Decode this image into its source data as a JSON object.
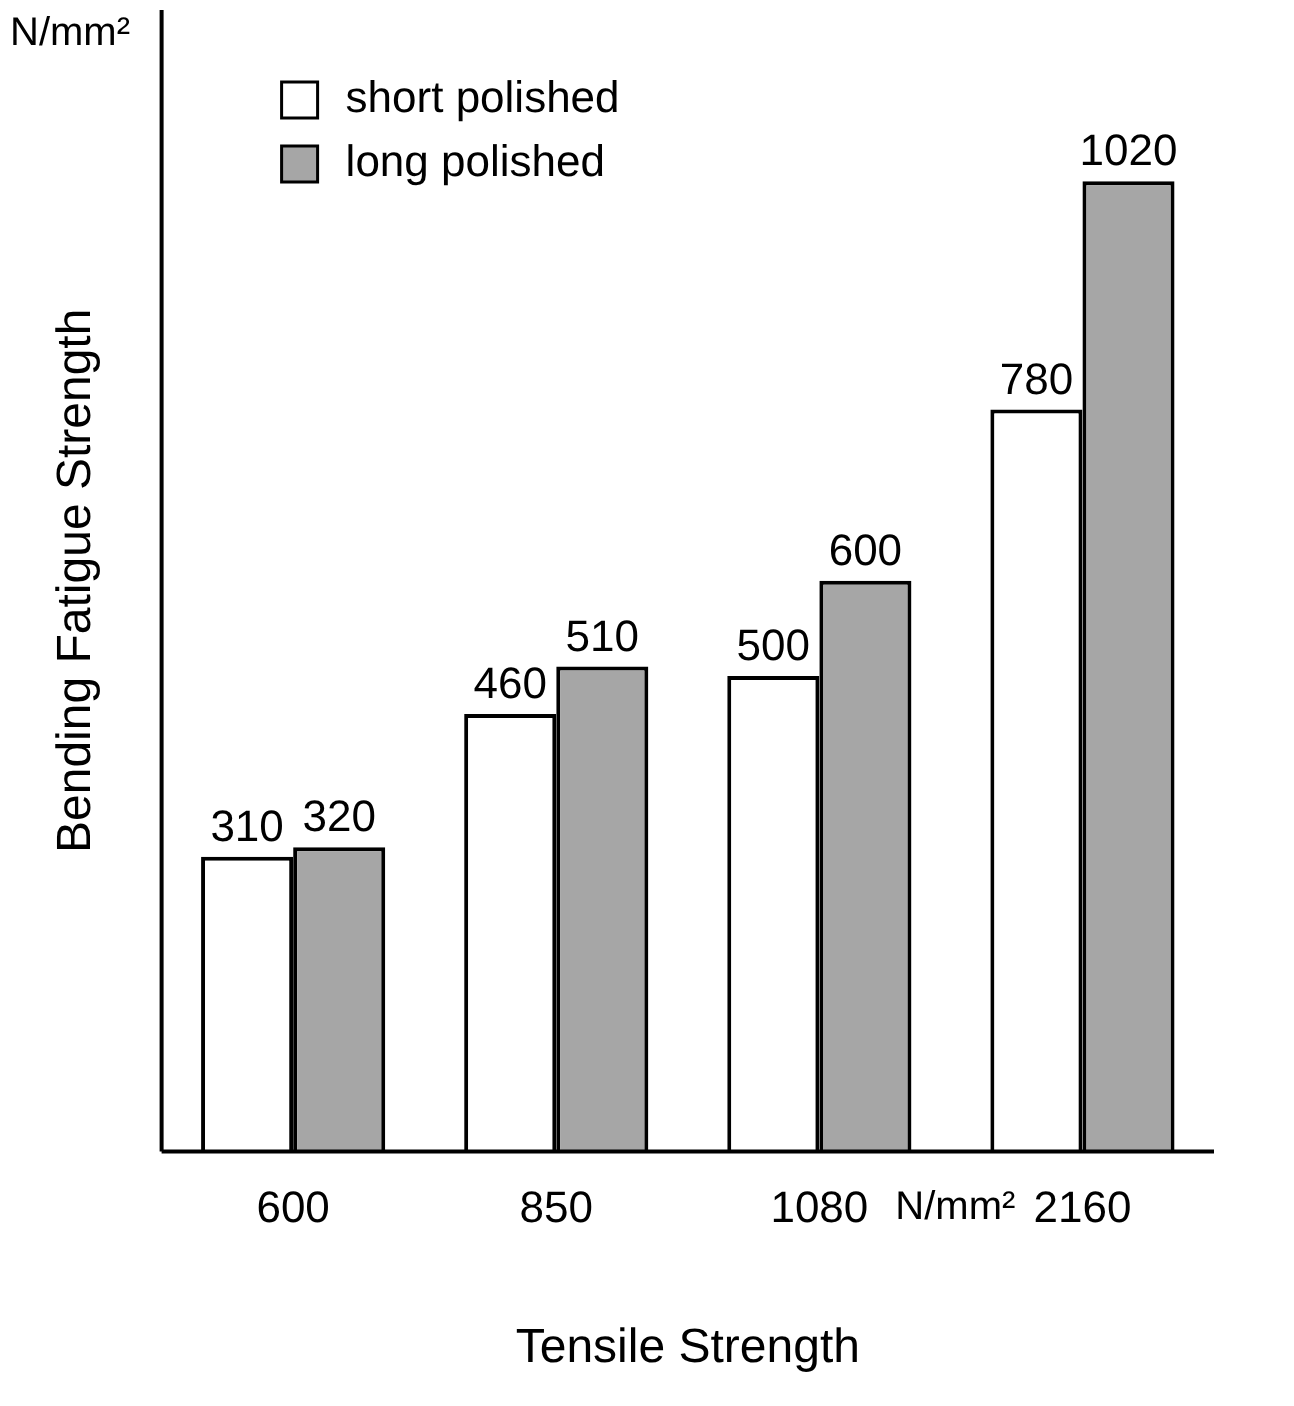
{
  "chart_data": {
    "type": "bar",
    "xlabel": "Tensile Strength",
    "ylabel": "Bending Fatigue Strength",
    "categories": [
      "600",
      "850",
      "1080",
      "2160"
    ],
    "series": [
      {
        "name": "short polished",
        "color": "#ffffff",
        "values": [
          310,
          460,
          500,
          780
        ]
      },
      {
        "name": "long polished",
        "color": "#a6a6a6",
        "values": [
          320,
          510,
          600,
          1020
        ]
      }
    ],
    "ylim": [
      0,
      1200
    ],
    "tick_labels": "x",
    "grid": false,
    "legend": "top left",
    "data_labels": true,
    "annotations": [
      "N/mm²",
      "N/mm²"
    ]
  }
}
